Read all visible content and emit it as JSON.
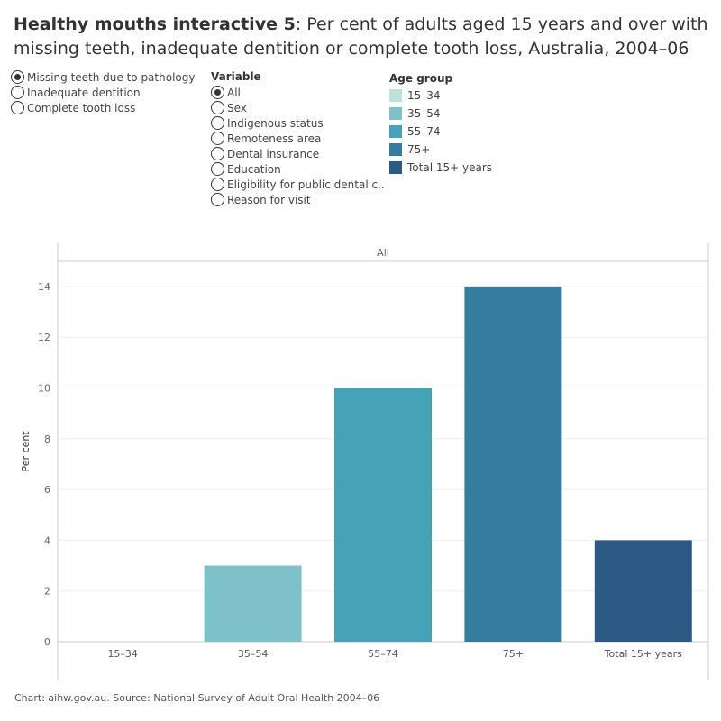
{
  "title": {
    "bold": "Healthy mouths interactive 5",
    "rest": ": Per cent of adults aged 15 years and over with missing teeth, inadequate dentition or complete tooth loss, Australia, 2004–06"
  },
  "measure": {
    "options": [
      {
        "label": "Missing teeth due to pathology",
        "selected": true
      },
      {
        "label": "Inadequate dentition",
        "selected": false
      },
      {
        "label": "Complete tooth loss",
        "selected": false
      }
    ]
  },
  "variable": {
    "heading": "Variable",
    "options": [
      {
        "label": "All",
        "selected": true
      },
      {
        "label": "Sex",
        "selected": false
      },
      {
        "label": "Indigenous status",
        "selected": false
      },
      {
        "label": "Remoteness area",
        "selected": false
      },
      {
        "label": "Dental insurance",
        "selected": false
      },
      {
        "label": "Education",
        "selected": false
      },
      {
        "label": "Eligibility for public dental c..",
        "selected": false
      },
      {
        "label": "Reason for visit",
        "selected": false
      }
    ]
  },
  "legend": {
    "heading": "Age group",
    "items": [
      {
        "label": "15–34",
        "color": "#bde3d9"
      },
      {
        "label": "35–54",
        "color": "#7fc1c8"
      },
      {
        "label": "55–74",
        "color": "#46a2b9"
      },
      {
        "label": "75+",
        "color": "#347d9f"
      },
      {
        "label": "Total 15+ years",
        "color": "#2d5985"
      }
    ]
  },
  "chart_data": {
    "type": "bar",
    "panel": "All",
    "categories": [
      "15–34",
      "35–54",
      "55–74",
      "75+",
      "Total 15+ years"
    ],
    "values": [
      0,
      3,
      10,
      14,
      4
    ],
    "colors": [
      "#bde3d9",
      "#7fc1c8",
      "#46a2b9",
      "#347d9f",
      "#2d5985"
    ],
    "ylabel": "Per cent",
    "ylim": [
      0,
      15
    ],
    "yticks": [
      0,
      2,
      4,
      6,
      8,
      10,
      12,
      14
    ],
    "grid": true
  },
  "footer": "Chart: aihw.gov.au. Source: National Survey of Adult Oral Health 2004–06"
}
